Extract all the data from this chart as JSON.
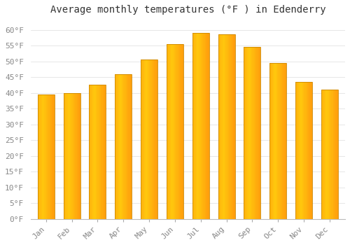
{
  "title": "Average monthly temperatures (°F ) in Edenderry",
  "months": [
    "Jan",
    "Feb",
    "Mar",
    "Apr",
    "May",
    "Jun",
    "Jul",
    "Aug",
    "Sep",
    "Oct",
    "Nov",
    "Dec"
  ],
  "values": [
    39.5,
    40.0,
    42.5,
    46.0,
    50.5,
    55.5,
    59.0,
    58.5,
    54.5,
    49.5,
    43.5,
    41.0
  ],
  "bar_color_left": "#FFD060",
  "bar_color_right": "#FFA020",
  "bar_edge_color": "#CC8800",
  "ylim": [
    0,
    63
  ],
  "yticks": [
    0,
    5,
    10,
    15,
    20,
    25,
    30,
    35,
    40,
    45,
    50,
    55,
    60
  ],
  "ytick_labels": [
    "0°F",
    "5°F",
    "10°F",
    "15°F",
    "20°F",
    "25°F",
    "30°F",
    "35°F",
    "40°F",
    "45°F",
    "50°F",
    "55°F",
    "60°F"
  ],
  "background_color": "#FFFFFF",
  "plot_bg_color": "#FFFFFF",
  "grid_color": "#DDDDDD",
  "title_fontsize": 10,
  "tick_fontsize": 8,
  "font_color": "#888888",
  "title_color": "#333333",
  "bar_width": 0.65
}
